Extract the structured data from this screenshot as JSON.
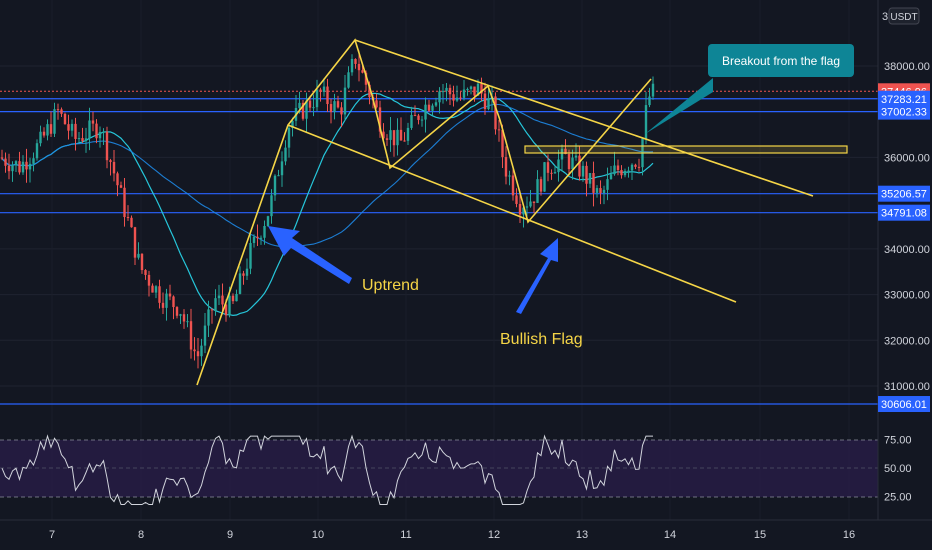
{
  "header": {
    "currency": "USDT",
    "top_tick": "3"
  },
  "chart_data": {
    "type": "candlestick",
    "price_axis": {
      "ticks": [
        "38000.00",
        "36000.00",
        "34000.00",
        "33000.00",
        "32000.00",
        "31000.00"
      ],
      "tick_values": [
        38000,
        36000,
        34000,
        33000,
        32000,
        31000
      ]
    },
    "time_axis": {
      "labels": [
        "7",
        "8",
        "9",
        "10",
        "11",
        "12",
        "13",
        "14",
        "15",
        "16"
      ]
    },
    "price_levels": [
      {
        "label": "37446.96",
        "value": 37446.96,
        "kind": "current"
      },
      {
        "label": "37283.21",
        "value": 37283.21,
        "kind": "line"
      },
      {
        "label": "37002.33",
        "value": 37002.33,
        "kind": "line"
      },
      {
        "label": "35206.57",
        "value": 35206.57,
        "kind": "line"
      },
      {
        "label": "34791.08",
        "value": 34791.08,
        "kind": "line"
      },
      {
        "label": "30606.01",
        "value": 30606.01,
        "kind": "line"
      }
    ],
    "annotations": {
      "uptrend": "Uptrend",
      "bullish_flag": "Bullish Flag",
      "breakout": "Breakout from the flag"
    },
    "rsi": {
      "ticks": [
        "75.00",
        "50.00",
        "25.00"
      ],
      "tick_values": [
        75,
        50,
        25
      ],
      "levels": [
        70,
        30
      ]
    },
    "colors": {
      "background": "#131722",
      "up": "#26a69a",
      "down": "#ef5350",
      "trendline": "#f5d547",
      "level_line": "#2962ff",
      "ma": "#26c6da",
      "rsi_line": "#d1d4dc",
      "rsi_band": "#2a1e4a",
      "arrow": "#2962ff",
      "callout": "#0e8596"
    }
  }
}
